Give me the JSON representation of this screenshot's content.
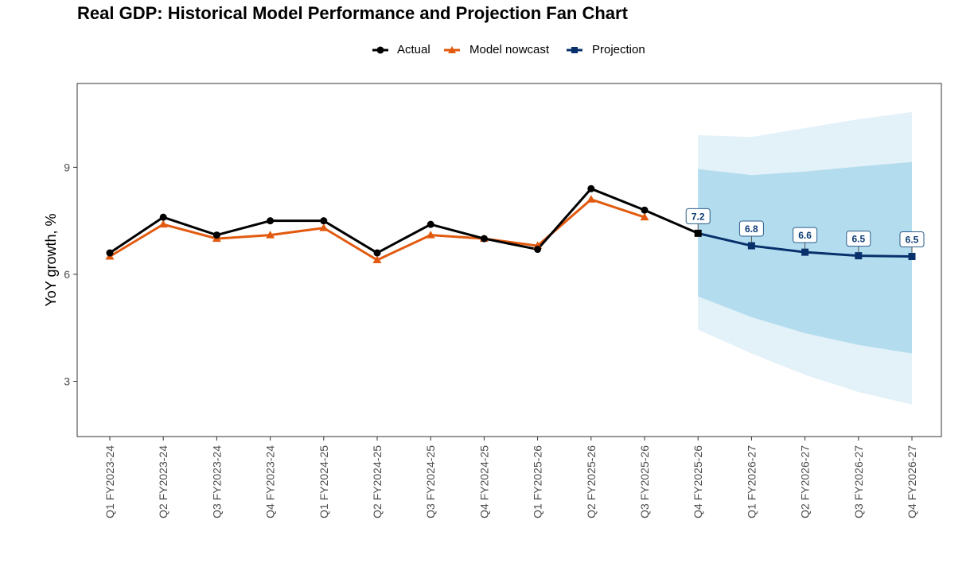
{
  "colors": {
    "actual": "#000000",
    "nowcast": "#e25a0f",
    "projection": "#08306b",
    "fan_outer": "#e3f1f8",
    "fan_inner": "#b3dcef",
    "label_text": "#0b3a73",
    "axis_text": "#4d4d4d"
  },
  "legend": [
    {
      "label": "Actual",
      "color": "#000000",
      "marker": "circle"
    },
    {
      "label": "Model nowcast",
      "color": "#e25a0f",
      "marker": "triangle"
    },
    {
      "label": "Projection",
      "color": "#08306b",
      "marker": "square"
    }
  ],
  "chart_data": {
    "type": "line",
    "title": "Real GDP: Historical Model Performance and Projection Fan Chart",
    "xlabel": "",
    "ylabel": "YoY growth, %",
    "ylim": [
      1.45,
      11.35
    ],
    "yticks": [
      3,
      6,
      9
    ],
    "grid": false,
    "legend_position": "top",
    "categories": [
      "Q1 FY2023-24",
      "Q2 FY2023-24",
      "Q3 FY2023-24",
      "Q4 FY2023-24",
      "Q1 FY2024-25",
      "Q2 FY2024-25",
      "Q3 FY2024-25",
      "Q4 FY2024-25",
      "Q1 FY2025-26",
      "Q2 FY2025-26",
      "Q3 FY2025-26",
      "Q4 FY2025-26",
      "Q1 FY2026-27",
      "Q2 FY2026-27",
      "Q3 FY2026-27",
      "Q4 FY2026-27"
    ],
    "series": [
      {
        "name": "Actual",
        "marker": "circle",
        "values": [
          6.6,
          7.6,
          7.1,
          7.5,
          7.5,
          6.6,
          7.4,
          7.0,
          6.7,
          8.4,
          7.8,
          null,
          null,
          null,
          null,
          null
        ]
      },
      {
        "name": "Model nowcast",
        "marker": "triangle",
        "values": [
          6.5,
          7.4,
          7.0,
          7.1,
          7.3,
          6.4,
          7.1,
          7.0,
          6.8,
          8.1,
          7.6,
          null,
          null,
          null,
          null,
          null
        ]
      },
      {
        "name": "Projection",
        "marker": "square",
        "values": [
          null,
          null,
          null,
          null,
          null,
          null,
          null,
          null,
          null,
          null,
          null,
          7.15,
          6.8,
          6.62,
          6.52,
          6.5
        ],
        "data_labels": [
          "",
          "",
          "",
          "",
          "",
          "",
          "",
          "",
          "",
          "",
          "",
          "7.2",
          "6.8",
          "6.6",
          "6.5",
          "6.5"
        ]
      }
    ],
    "connector": {
      "from_index": 10,
      "to_index": 11,
      "from_value": 7.8,
      "to_value": 7.15
    },
    "fan": {
      "start_index": 11,
      "outer_upper": [
        9.9,
        9.85,
        10.1,
        10.35,
        10.55
      ],
      "inner_upper": [
        8.95,
        8.78,
        8.88,
        9.02,
        9.15
      ],
      "inner_lower": [
        5.38,
        4.8,
        4.35,
        4.02,
        3.78
      ],
      "outer_lower": [
        4.45,
        3.78,
        3.18,
        2.7,
        2.35
      ]
    }
  }
}
